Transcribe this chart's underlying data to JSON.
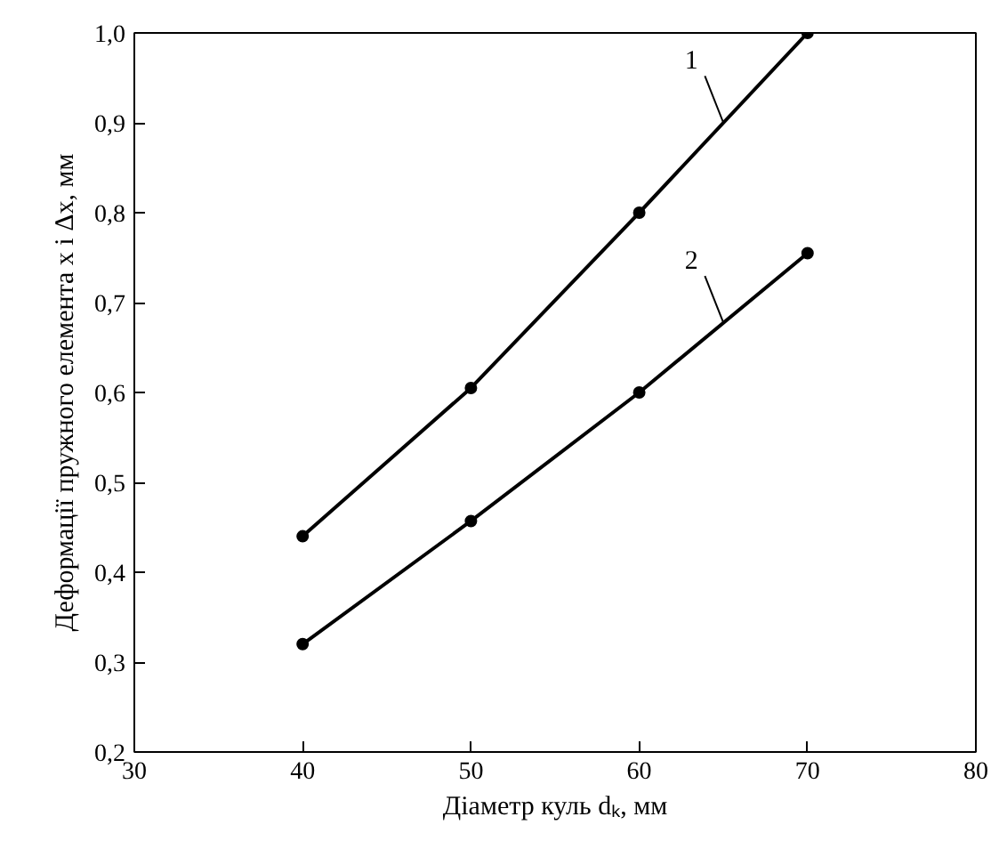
{
  "chart_data": {
    "type": "line",
    "xlabel": "Діаметр куль dₖ, мм",
    "ylabel": "Деформації пружного елемента x і Δx, мм",
    "x": [
      40,
      50,
      60,
      70
    ],
    "series": [
      {
        "name": "1",
        "color": "#000000",
        "values": [
          0.44,
          0.605,
          0.8,
          1.0
        ]
      },
      {
        "name": "2",
        "color": "#000000",
        "values": [
          0.32,
          0.457,
          0.6,
          0.755
        ]
      }
    ],
    "xlim": [
      30,
      80
    ],
    "xticks": [
      30,
      40,
      50,
      60,
      70,
      80
    ],
    "ylim": [
      0.2,
      1.0
    ],
    "yticks": [
      {
        "value": 0.2,
        "label": "0,2"
      },
      {
        "value": 0.3,
        "label": "0,3"
      },
      {
        "value": 0.4,
        "label": "0,4"
      },
      {
        "value": 0.5,
        "label": "0,5"
      },
      {
        "value": 0.6,
        "label": "0,6"
      },
      {
        "value": 0.7,
        "label": "0,7"
      },
      {
        "value": 0.8,
        "label": "0,8"
      },
      {
        "value": 0.9,
        "label": "0,9"
      },
      {
        "value": 1.0,
        "label": "1,0"
      }
    ],
    "marker": "circle",
    "line_style": "solid",
    "grid": false
  }
}
